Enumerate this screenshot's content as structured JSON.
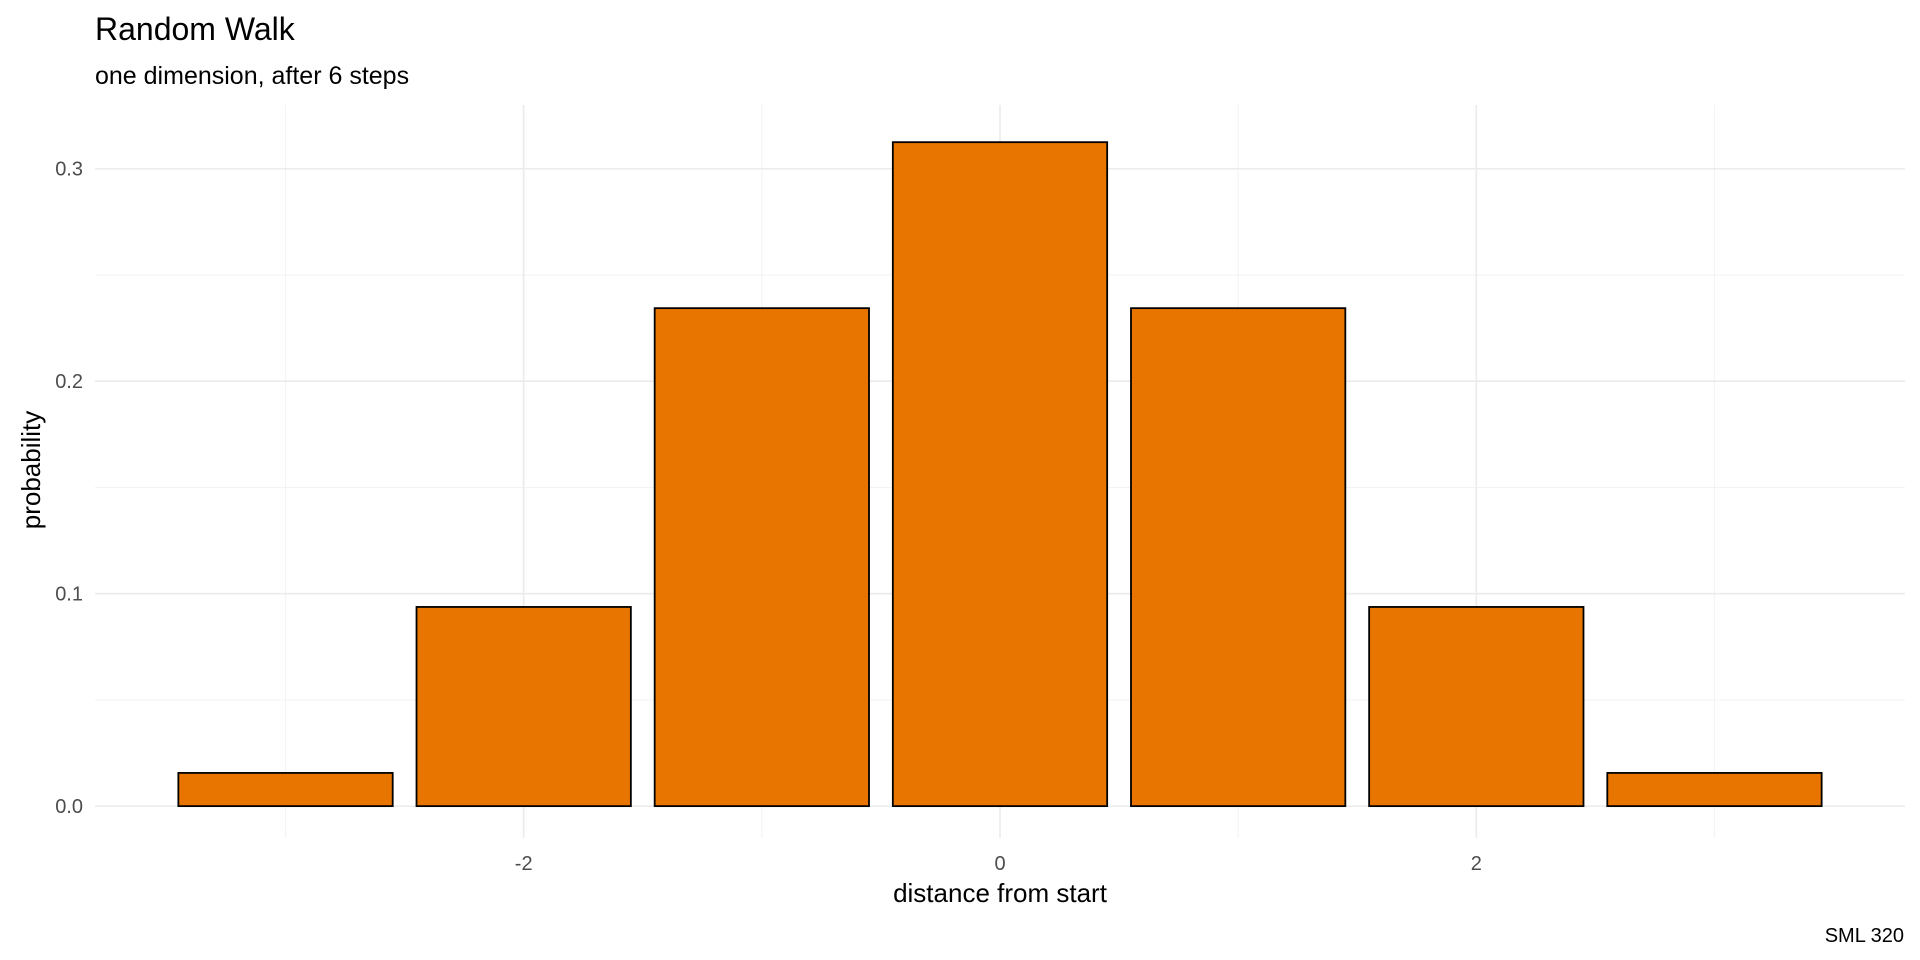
{
  "chart_data": {
    "type": "bar",
    "title": "Random Walk",
    "subtitle": "one dimension, after 6 steps",
    "xlabel": "distance from start",
    "ylabel": "probability",
    "caption": "SML 320",
    "x": [
      -3,
      -2,
      -1,
      0,
      1,
      2,
      3
    ],
    "values": [
      0.015625,
      0.09375,
      0.234375,
      0.3125,
      0.234375,
      0.09375,
      0.015625
    ],
    "x_ticks": [
      -2,
      0,
      2
    ],
    "x_tick_labels": [
      "-2",
      "0",
      "2"
    ],
    "y_ticks": [
      0.0,
      0.1,
      0.2,
      0.3
    ],
    "y_tick_labels": [
      "0.0",
      "0.1",
      "0.2",
      "0.3"
    ],
    "xlim": [
      -3.8,
      3.8
    ],
    "ylim": [
      -0.015,
      0.33
    ],
    "grid": true,
    "legend": "none",
    "bar_color": "#E87500",
    "bar_outline": "#000000"
  }
}
